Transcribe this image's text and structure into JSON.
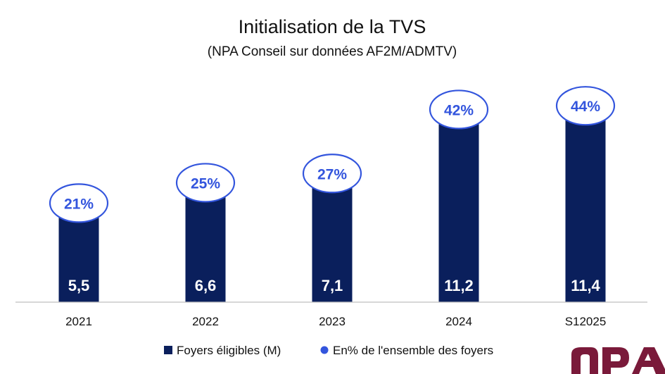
{
  "chart_data": {
    "type": "bar",
    "title": "Initialisation de la TVS",
    "subtitle": "(NPA Conseil sur données AF2M/ADMTV)",
    "categories": [
      "2021",
      "2022",
      "2023",
      "2024",
      "S12025"
    ],
    "series": [
      {
        "name": "Foyers éligibles (M)",
        "values": [
          5.5,
          6.6,
          7.1,
          11.2,
          11.4
        ],
        "labels": [
          "5,5",
          "6,6",
          "7,1",
          "11,2",
          "11,4"
        ],
        "color": "#0a1f5c"
      },
      {
        "name": "En% de l'ensemble des foyers",
        "values": [
          21,
          25,
          27,
          42,
          44
        ],
        "labels": [
          "21%",
          "25%",
          "27%",
          "42%",
          "44%"
        ],
        "color": "#3355dd"
      }
    ],
    "legend_position": "bottom",
    "grid": false
  },
  "logo": {
    "text": "npa",
    "color": "#7a1a3a"
  }
}
